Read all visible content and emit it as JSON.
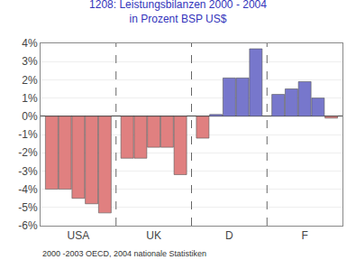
{
  "chart_data": {
    "type": "bar",
    "title": "1208: Leistungsbilanzen 2000 - 2004\nin Prozent BSP US$",
    "annotations": [
      "2000 -2003 OECD, 2004 nationale Statistiken"
    ],
    "categories": [
      "USA",
      "UK",
      "D",
      "F"
    ],
    "series": [
      {
        "values": [
          -4.0,
          -2.3,
          -1.2,
          1.2
        ],
        "colors": [
          "#e08080",
          "#e08080",
          "#e08080",
          "#7777cc"
        ]
      },
      {
        "values": [
          -4.0,
          -2.3,
          0.1,
          1.5
        ],
        "colors": [
          "#e08080",
          "#e08080",
          "#7777cc",
          "#7777cc"
        ]
      },
      {
        "values": [
          -4.5,
          -1.7,
          2.1,
          1.9
        ],
        "colors": [
          "#e08080",
          "#e08080",
          "#7777cc",
          "#7777cc"
        ]
      },
      {
        "values": [
          -4.8,
          -1.7,
          2.1,
          1.0
        ],
        "colors": [
          "#e08080",
          "#e08080",
          "#7777cc",
          "#7777cc"
        ]
      },
      {
        "values": [
          -5.3,
          -3.2,
          3.7,
          -0.1
        ],
        "colors": [
          "#e08080",
          "#e08080",
          "#7777cc",
          "#e08080"
        ]
      }
    ],
    "ylim": [
      -6,
      4
    ],
    "yticks": [
      {
        "value": -6,
        "label": "-6%"
      },
      {
        "value": -5,
        "label": "-5%"
      },
      {
        "value": -4,
        "label": "-4%"
      },
      {
        "value": -3,
        "label": "-3%"
      },
      {
        "value": -2,
        "label": "-2%"
      },
      {
        "value": -1,
        "label": "-1%"
      },
      {
        "value": 0,
        "label": "0%"
      },
      {
        "value": 1,
        "label": "1%"
      },
      {
        "value": 2,
        "label": "2%"
      },
      {
        "value": 3,
        "label": "3%"
      },
      {
        "value": 4,
        "label": "4%"
      }
    ],
    "grid": true
  }
}
